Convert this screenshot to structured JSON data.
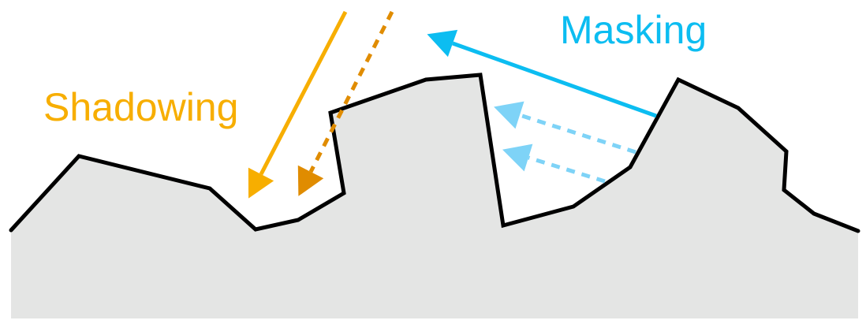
{
  "labels": {
    "shadowing": "Shadowing",
    "masking": "Masking"
  },
  "colors": {
    "surface_fill": "#e4e5e4",
    "surface_stroke": "#000000",
    "shadowing": "#f7ae00",
    "shadowing_dark": "#e08c00",
    "masking": "#0cbdf1",
    "masking_light": "#7ed3f7"
  }
}
